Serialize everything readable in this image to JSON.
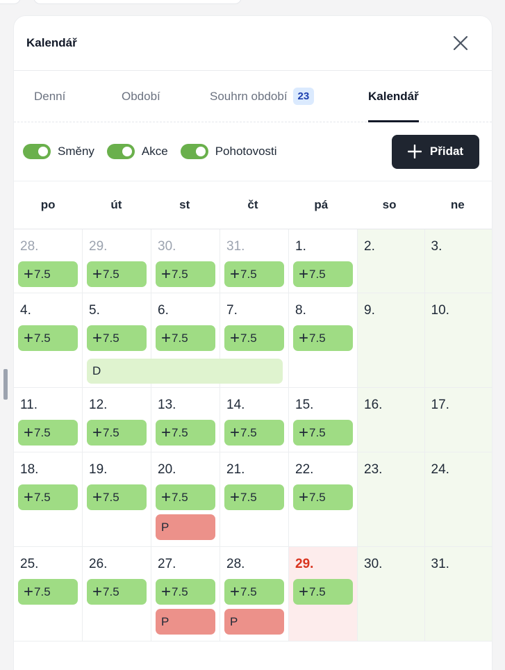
{
  "header": {
    "title": "Kalendář"
  },
  "tabs": [
    {
      "label": "Denní"
    },
    {
      "label": "Období"
    },
    {
      "label": "Souhrn období",
      "badge": "23"
    },
    {
      "label": "Kalendář"
    }
  ],
  "filters": {
    "items": [
      {
        "label": "Směny"
      },
      {
        "label": "Akce"
      },
      {
        "label": "Pohotovosti"
      }
    ],
    "add_label": "Přidat"
  },
  "calendar": {
    "weekdays": [
      "po",
      "út",
      "st",
      "čt",
      "pá",
      "so",
      "ne"
    ],
    "shift_label": "7.5",
    "event_d": "D",
    "event_p": "P",
    "weeks": [
      [
        "28.",
        "29.",
        "30.",
        "31.",
        "1.",
        "2.",
        "3."
      ],
      [
        "4.",
        "5.",
        "6.",
        "7.",
        "8.",
        "9.",
        "10."
      ],
      [
        "11.",
        "12.",
        "13.",
        "14.",
        "15.",
        "16.",
        "17."
      ],
      [
        "18.",
        "19.",
        "20.",
        "21.",
        "22.",
        "23.",
        "24."
      ],
      [
        "25.",
        "26.",
        "27.",
        "28.",
        "29.",
        "30.",
        "31."
      ]
    ]
  }
}
